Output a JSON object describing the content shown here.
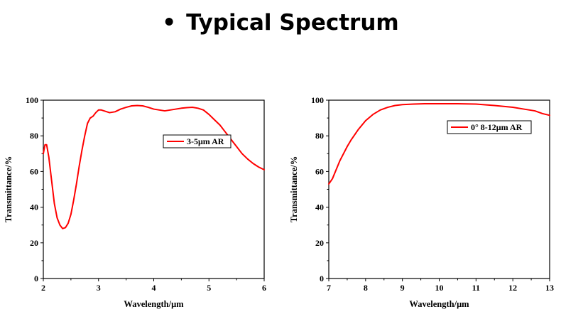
{
  "page": {
    "title": "Typical Spectrum",
    "bullet": "•"
  },
  "chart_data": [
    {
      "type": "line",
      "title": "",
      "xlabel": "Wavelength/μm",
      "ylabel": "Transmittance/%",
      "xlim": [
        2,
        6
      ],
      "ylim": [
        0,
        100
      ],
      "xticks": [
        2,
        3,
        4,
        5,
        6
      ],
      "yticks": [
        0,
        20,
        40,
        60,
        80,
        100
      ],
      "grid": false,
      "legend_position": "right",
      "series": [
        {
          "name": "3-5μm AR",
          "color": "#ff0000",
          "x": [
            2.0,
            2.03,
            2.06,
            2.1,
            2.15,
            2.2,
            2.25,
            2.3,
            2.35,
            2.4,
            2.45,
            2.5,
            2.55,
            2.6,
            2.65,
            2.7,
            2.75,
            2.8,
            2.85,
            2.9,
            2.95,
            3.0,
            3.05,
            3.1,
            3.2,
            3.3,
            3.4,
            3.5,
            3.6,
            3.7,
            3.8,
            3.9,
            4.0,
            4.1,
            4.2,
            4.3,
            4.4,
            4.5,
            4.6,
            4.7,
            4.8,
            4.9,
            5.0,
            5.1,
            5.2,
            5.3,
            5.4,
            5.5,
            5.6,
            5.7,
            5.8,
            5.9,
            6.0
          ],
          "y": [
            70,
            75,
            75,
            68,
            55,
            42,
            34,
            30,
            28,
            28.5,
            31,
            36,
            44,
            53,
            63,
            72,
            80,
            87,
            90,
            91,
            93,
            94.5,
            94.5,
            94,
            93,
            93.5,
            95,
            96,
            96.8,
            97,
            96.8,
            96,
            95,
            94.5,
            94,
            94.5,
            95,
            95.5,
            95.8,
            96,
            95.5,
            94.5,
            92,
            89,
            86,
            82,
            78,
            74,
            70,
            67,
            64.5,
            62.5,
            61
          ]
        }
      ]
    },
    {
      "type": "line",
      "title": "",
      "xlabel": "Wavelength/μm",
      "ylabel": "Transmittance/%",
      "xlim": [
        7,
        13
      ],
      "ylim": [
        0,
        100
      ],
      "xticks": [
        7,
        8,
        9,
        10,
        11,
        12,
        13
      ],
      "yticks": [
        0,
        20,
        40,
        60,
        80,
        100
      ],
      "grid": false,
      "legend_position": "right",
      "series": [
        {
          "name": "0° 8-12μm AR",
          "color": "#ff0000",
          "x": [
            7.0,
            7.1,
            7.2,
            7.3,
            7.4,
            7.5,
            7.6,
            7.7,
            7.8,
            7.9,
            8.0,
            8.2,
            8.4,
            8.6,
            8.8,
            9.0,
            9.3,
            9.6,
            10.0,
            10.5,
            11.0,
            11.5,
            12.0,
            12.3,
            12.6,
            12.8,
            13.0
          ],
          "y": [
            53,
            56,
            61,
            66,
            70,
            74,
            77.5,
            80.5,
            83.5,
            86,
            88.5,
            92,
            94.5,
            96,
            97,
            97.5,
            97.8,
            98,
            98,
            98,
            97.8,
            97,
            96,
            95,
            94,
            92.5,
            91.5
          ]
        }
      ]
    }
  ]
}
